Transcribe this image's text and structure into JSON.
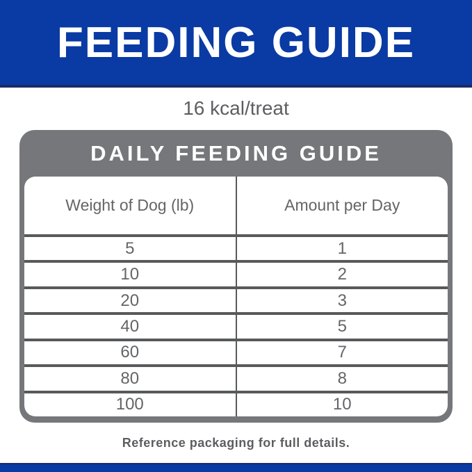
{
  "colors": {
    "brand_blue": "#0a3aa3",
    "navy_accent": "#1b2a6b",
    "panel_gray": "#76777a",
    "divider_gray": "#58595b",
    "text_gray": "#5d5e61"
  },
  "top_banner": {
    "title": "FEEDING GUIDE"
  },
  "calorie_line": "16 kcal/treat",
  "daily_guide": {
    "title": "DAILY FEEDING GUIDE",
    "columns": [
      "Weight of Dog (lb)",
      "Amount per Day"
    ],
    "rows": [
      {
        "weight": "5",
        "amount": "1"
      },
      {
        "weight": "10",
        "amount": "2"
      },
      {
        "weight": "20",
        "amount": "3"
      },
      {
        "weight": "40",
        "amount": "5"
      },
      {
        "weight": "60",
        "amount": "7"
      },
      {
        "weight": "80",
        "amount": "8"
      },
      {
        "weight": "100",
        "amount": "10"
      }
    ]
  },
  "footer": {
    "note": "Reference packaging for full details."
  }
}
